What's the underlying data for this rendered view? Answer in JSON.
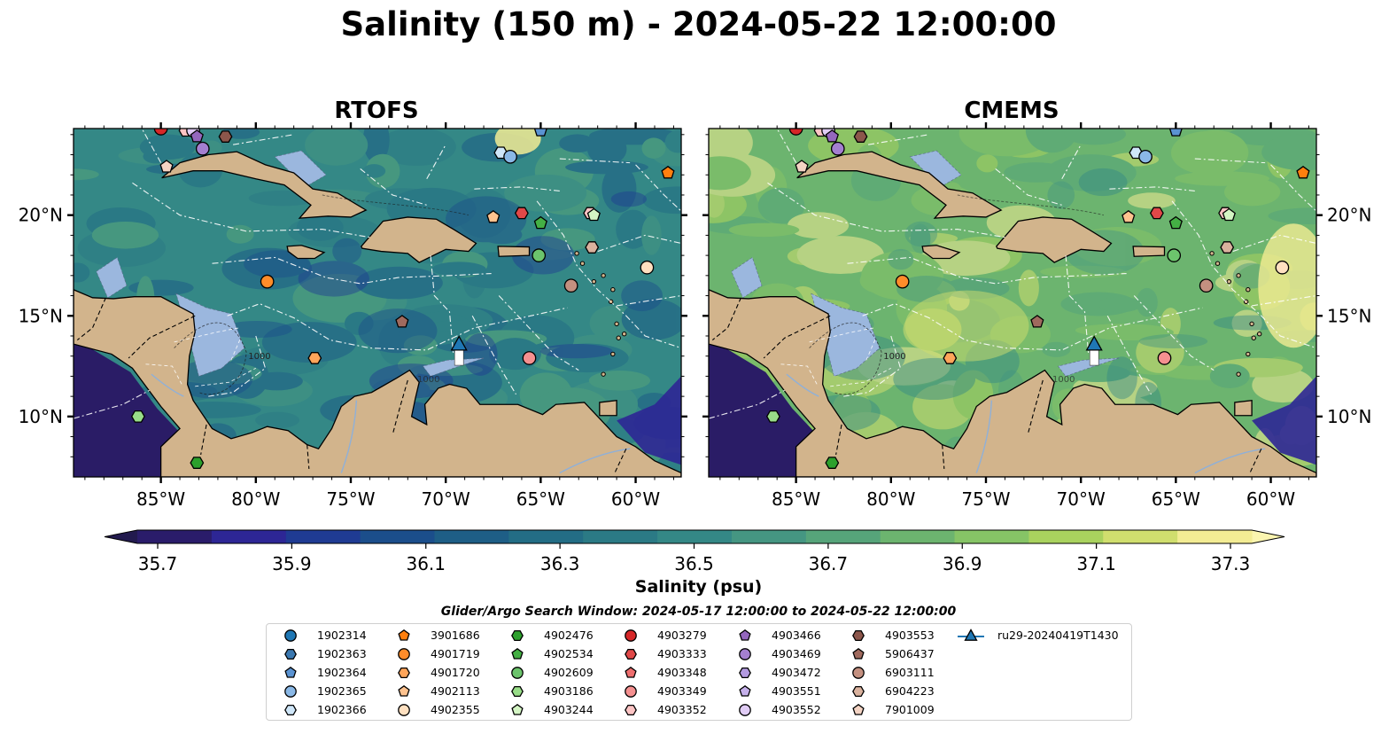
{
  "title": "Salinity (150 m) - 2024-05-22 12:00:00",
  "panels": [
    {
      "title": "RTOFS"
    },
    {
      "title": "CMEMS"
    }
  ],
  "colorbar": {
    "label": "Salinity (psu)",
    "ticks": [
      "35.7",
      "35.9",
      "36.1",
      "36.3",
      "36.5",
      "36.7",
      "36.9",
      "37.1",
      "37.3"
    ],
    "range": [
      35.7,
      37.3
    ],
    "colors": [
      "#2a1c6a",
      "#2d2695",
      "#1f3b93",
      "#1b4e8b",
      "#1e5e86",
      "#236d85",
      "#2b7a85",
      "#348886",
      "#459682",
      "#56a47a",
      "#6cb46f",
      "#86c466",
      "#a9d25e",
      "#d0de6e",
      "#f3ec94"
    ]
  },
  "legend": {
    "title": "Glider/Argo Search Window: 2024-05-17 12:00:00 to 2024-05-22 12:00:00",
    "items": [
      {
        "label": "1902314",
        "marker": "circle",
        "color": "#1f77b4"
      },
      {
        "label": "1902363",
        "marker": "hexagon",
        "color": "#3a78b0"
      },
      {
        "label": "1902364",
        "marker": "pentagon",
        "color": "#5a93d2"
      },
      {
        "label": "1902365",
        "marker": "circle",
        "color": "#8ab8e6"
      },
      {
        "label": "1902366",
        "marker": "hexagon",
        "color": "#cfe6f8"
      },
      {
        "label": "3901686",
        "marker": "pentagon",
        "color": "#ff7f0e"
      },
      {
        "label": "4901719",
        "marker": "circle",
        "color": "#ff8c2a"
      },
      {
        "label": "4901720",
        "marker": "hexagon",
        "color": "#ffa55a"
      },
      {
        "label": "4902113",
        "marker": "pentagon",
        "color": "#ffc38f"
      },
      {
        "label": "4902355",
        "marker": "circle",
        "color": "#ffe0c0"
      },
      {
        "label": "4902476",
        "marker": "hexagon",
        "color": "#2ca02c"
      },
      {
        "label": "4902534",
        "marker": "pentagon",
        "color": "#44b044"
      },
      {
        "label": "4902609",
        "marker": "circle",
        "color": "#6cc46c"
      },
      {
        "label": "4903186",
        "marker": "hexagon",
        "color": "#98dd88"
      },
      {
        "label": "4903244",
        "marker": "pentagon",
        "color": "#d4f5c4"
      },
      {
        "label": "4903279",
        "marker": "circle",
        "color": "#d62728"
      },
      {
        "label": "4903333",
        "marker": "hexagon",
        "color": "#e04848"
      },
      {
        "label": "4903348",
        "marker": "pentagon",
        "color": "#ee6e6e"
      },
      {
        "label": "4903349",
        "marker": "circle",
        "color": "#f59090"
      },
      {
        "label": "4903352",
        "marker": "hexagon",
        "color": "#fcc4c4"
      },
      {
        "label": "4903466",
        "marker": "pentagon",
        "color": "#9467bd"
      },
      {
        "label": "4903469",
        "marker": "circle",
        "color": "#a47fd0"
      },
      {
        "label": "4903472",
        "marker": "hexagon",
        "color": "#b39ae0"
      },
      {
        "label": "4903551",
        "marker": "pentagon",
        "color": "#c5b0ea"
      },
      {
        "label": "4903552",
        "marker": "circle",
        "color": "#e0ccf5"
      },
      {
        "label": "4903553",
        "marker": "hexagon",
        "color": "#8c564b"
      },
      {
        "label": "5906437",
        "marker": "pentagon",
        "color": "#a06a5e"
      },
      {
        "label": "6903111",
        "marker": "circle",
        "color": "#c49080"
      },
      {
        "label": "6904223",
        "marker": "hexagon",
        "color": "#dab29e"
      },
      {
        "label": "7901009",
        "marker": "pentagon",
        "color": "#f4d4c4"
      },
      {
        "label": "ru29-20240419T1430",
        "marker": "triangle-line",
        "color": "#1f77b4"
      }
    ]
  },
  "chart_data": [
    {
      "type": "heatmap",
      "title": "RTOFS",
      "variable": "Salinity",
      "units": "psu",
      "depth": "150 m",
      "time": "2024-05-22 12:00:00",
      "x_ticks": [
        "85°W",
        "80°W",
        "75°W",
        "70°W",
        "65°W",
        "60°W"
      ],
      "y_ticks": [
        "10°N",
        "15°N",
        "20°N"
      ],
      "xlim": [
        -89.6,
        -57.6
      ],
      "ylim": [
        7.0,
        24.3
      ],
      "color_range": [
        35.7,
        37.3
      ],
      "contour_label": "1000"
    },
    {
      "type": "heatmap",
      "title": "CMEMS",
      "variable": "Salinity",
      "units": "psu",
      "depth": "150 m",
      "time": "2024-05-22 12:00:00",
      "x_ticks": [
        "85°W",
        "80°W",
        "75°W",
        "70°W",
        "65°W",
        "60°W"
      ],
      "y_ticks": [
        "10°N",
        "15°N",
        "20°N"
      ],
      "xlim": [
        -89.6,
        -57.6
      ],
      "ylim": [
        7.0,
        24.3
      ],
      "color_range": [
        35.7,
        37.3
      ],
      "contour_label": "1000"
    }
  ],
  "floats": [
    {
      "id": "4903279",
      "lon": -85.0,
      "lat": 24.3
    },
    {
      "id": "4903352",
      "lon": -83.7,
      "lat": 24.2
    },
    {
      "id": "4903552",
      "lon": -83.3,
      "lat": 24.2
    },
    {
      "id": "4903466",
      "lon": -83.1,
      "lat": 23.9
    },
    {
      "id": "4903553",
      "lon": -81.6,
      "lat": 23.9
    },
    {
      "id": "4903469",
      "lon": -82.8,
      "lat": 23.3
    },
    {
      "id": "7901009",
      "lon": -84.7,
      "lat": 22.4
    },
    {
      "id": "1902364",
      "lon": -65.0,
      "lat": 24.2
    },
    {
      "id": "1902366",
      "lon": -67.1,
      "lat": 23.1
    },
    {
      "id": "1902365",
      "lon": -66.6,
      "lat": 22.9
    },
    {
      "id": "3901686",
      "lon": -58.3,
      "lat": 22.1
    },
    {
      "id": "4902113",
      "lon": -67.5,
      "lat": 19.9
    },
    {
      "id": "4903333",
      "lon": -66.0,
      "lat": 20.1
    },
    {
      "id": "4902534",
      "lon": -65.0,
      "lat": 19.6
    },
    {
      "id": "4903352",
      "lon": -62.4,
      "lat": 20.1
    },
    {
      "id": "4903244",
      "lon": -62.2,
      "lat": 20.0
    },
    {
      "id": "6904223",
      "lon": -62.3,
      "lat": 18.4
    },
    {
      "id": "4902609",
      "lon": -65.1,
      "lat": 18.0
    },
    {
      "id": "4902355",
      "lon": -59.4,
      "lat": 17.4
    },
    {
      "id": "6903111",
      "lon": -63.4,
      "lat": 16.5
    },
    {
      "id": "4901719",
      "lon": -79.4,
      "lat": 16.7
    },
    {
      "id": "5906437",
      "lon": -72.3,
      "lat": 14.7
    },
    {
      "id": "4901720",
      "lon": -76.9,
      "lat": 12.9
    },
    {
      "id": "4903349",
      "lon": -65.6,
      "lat": 12.9
    },
    {
      "id": "4903186",
      "lon": -86.2,
      "lat": 10.0
    },
    {
      "id": "4902476",
      "lon": -83.1,
      "lat": 7.7
    }
  ],
  "glider": {
    "id": "ru29-20240419T1430",
    "lon": -69.3,
    "lat": 13.6
  }
}
